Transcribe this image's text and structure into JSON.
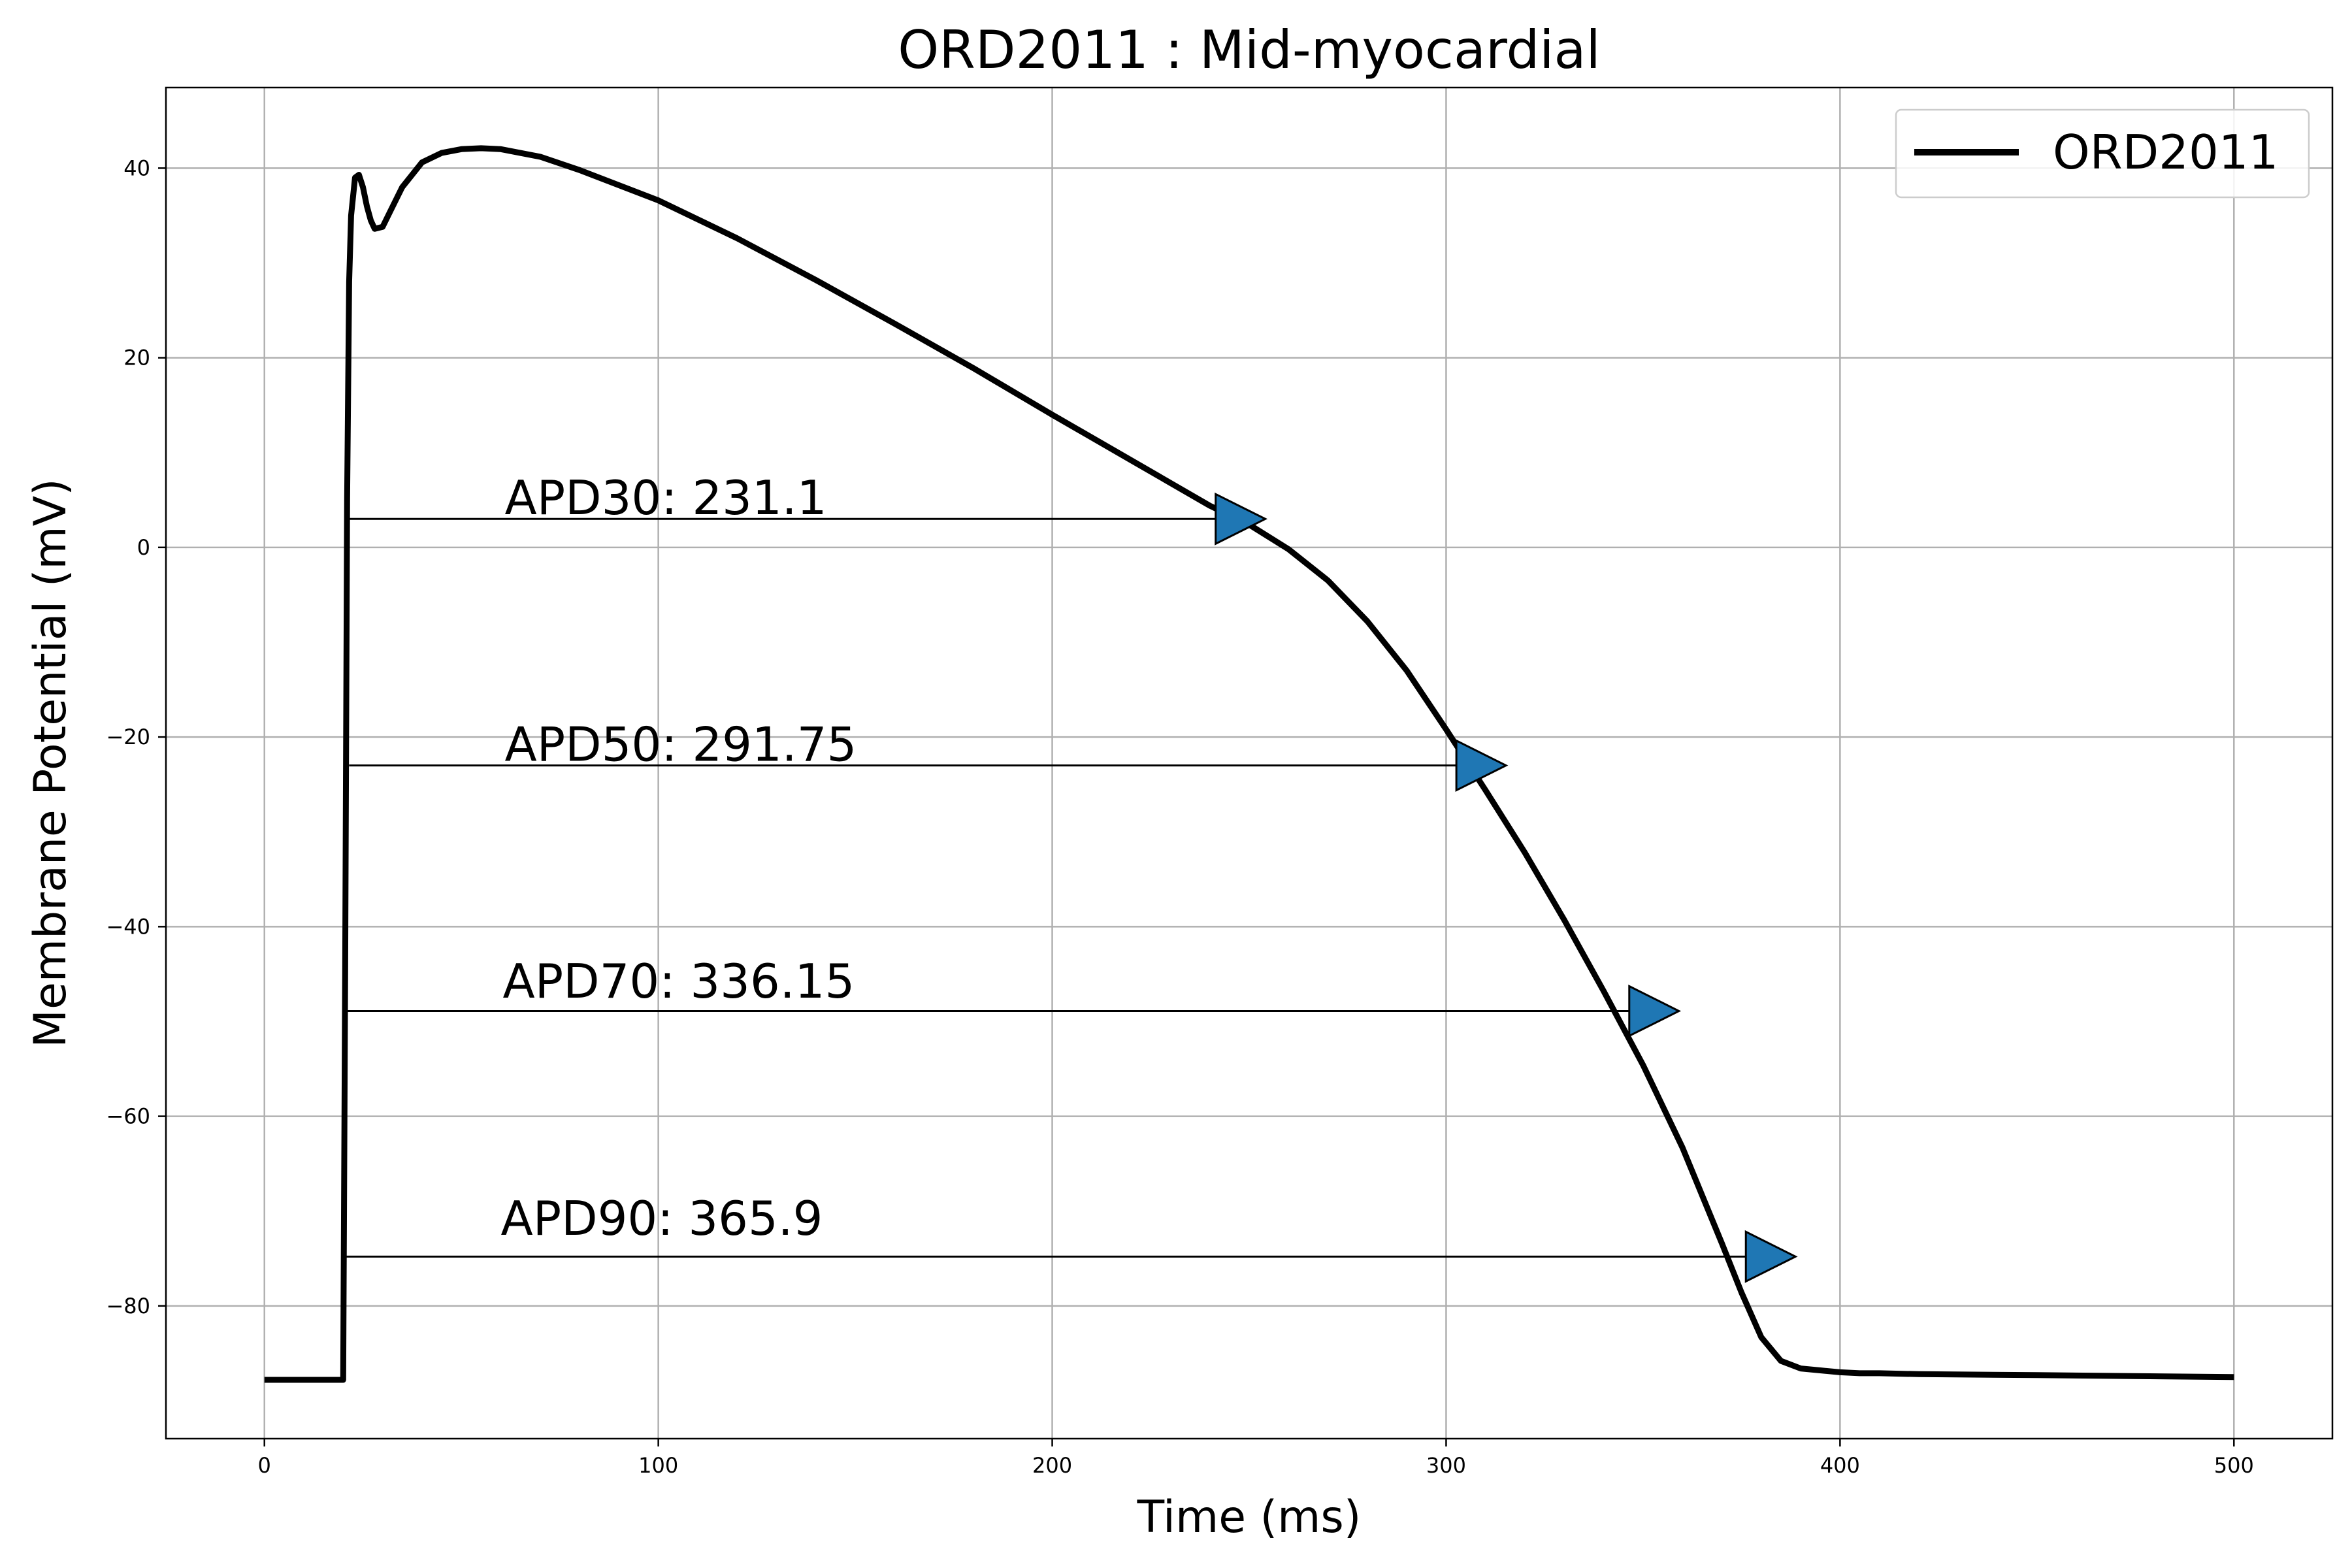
{
  "chart_data": {
    "type": "line",
    "title": "ORD2011 : Mid-myocardial",
    "xlabel": "Time (ms)",
    "ylabel": "Membrane Potential (mV)",
    "xlim": [
      -25,
      525
    ],
    "ylim": [
      -94,
      48.5
    ],
    "xticks": [
      0,
      100,
      200,
      300,
      400,
      500
    ],
    "yticks": [
      -80,
      -60,
      -40,
      -20,
      0,
      20,
      40
    ],
    "grid": true,
    "legend_position": "top-right",
    "colors": {
      "line": "#000000",
      "marker": "#1f77b4",
      "grid": "#b0b0b0"
    },
    "series": [
      {
        "name": "ORD2011",
        "x": [
          0,
          20,
          20.5,
          21,
          21.5,
          22,
          23,
          24,
          25,
          26,
          27,
          28,
          30,
          32,
          35,
          40,
          45,
          50,
          55,
          60,
          70,
          80,
          100,
          120,
          140,
          160,
          180,
          200,
          220,
          240,
          250,
          260,
          270,
          280,
          290,
          300,
          310,
          320,
          330,
          340,
          350,
          360,
          370,
          375,
          380,
          385,
          390,
          395,
          400,
          405,
          410,
          420,
          450,
          500
        ],
        "y": [
          -87.8,
          -87.8,
          -45,
          5,
          28,
          35,
          39,
          39.3,
          38,
          36,
          34.5,
          33.6,
          33.8,
          35.5,
          38,
          40.6,
          41.6,
          42,
          42.1,
          42,
          41.2,
          39.8,
          36.6,
          32.6,
          28.2,
          23.6,
          18.9,
          14,
          9.2,
          4.4,
          2.4,
          -0.2,
          -3.5,
          -7.8,
          -13,
          -19.2,
          -25.6,
          -32.2,
          -39.3,
          -46.8,
          -54.6,
          -63.3,
          -73.4,
          -78.6,
          -83.3,
          -85.8,
          -86.6,
          -86.8,
          -87,
          -87.1,
          -87.1,
          -87.2,
          -87.3,
          -87.5
        ]
      }
    ],
    "annotations": [
      {
        "label": "APD30: 231.1",
        "start_x": 21.5,
        "end_x": 247.8,
        "y": 3,
        "text_x": 61,
        "text_y": 3.5
      },
      {
        "label": "APD50: 291.75",
        "start_x": 21.5,
        "end_x": 308.9,
        "y": -23,
        "text_x": 61,
        "text_y": -22.5
      },
      {
        "label": "APD70: 336.15",
        "start_x": 20.5,
        "end_x": 352.8,
        "y": -48.9,
        "text_x": 60.5,
        "text_y": -47.5
      },
      {
        "label": "APD90: 365.9",
        "start_x": 20.5,
        "end_x": 382.4,
        "y": -74.8,
        "text_x": 60,
        "text_y": -72.5
      }
    ]
  }
}
